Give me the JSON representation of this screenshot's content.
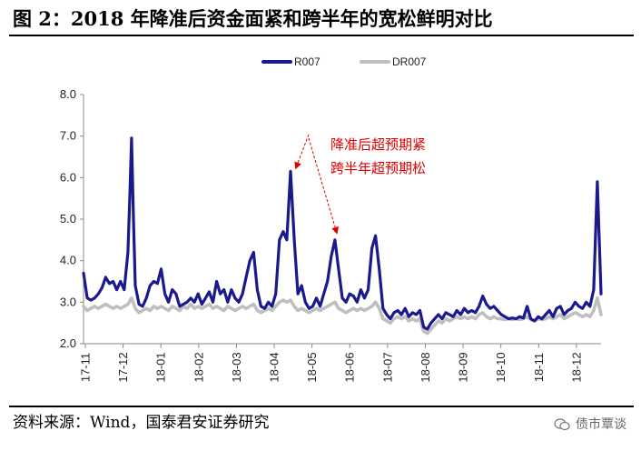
{
  "title": "图 2：2018 年降准后资金面紧和跨半年的宽松鲜明对比",
  "source": "资料来源：Wind，国泰君安证券研究",
  "watermark": "债市覃谈",
  "watermark_icon": "wechat-icon",
  "colors": {
    "R007": "#1a1a8c",
    "DR007": "#bfbfbf",
    "annotation": "#e00000"
  },
  "chart_data": {
    "type": "line",
    "title": "",
    "xlabel": "",
    "ylabel": "",
    "ylim": [
      2.0,
      8.0
    ],
    "yticks": [
      "8.0",
      "7.0",
      "6.0",
      "5.0",
      "4.0",
      "3.0",
      "2.0"
    ],
    "xticks": [
      "17-11",
      "17-12",
      "18-01",
      "18-02",
      "18-03",
      "18-04",
      "18-05",
      "18-06",
      "18-07",
      "18-08",
      "18-09",
      "18-10",
      "18-11",
      "18-12"
    ],
    "legend": "top-center",
    "grid": false,
    "annotations": [
      "降准后超预期紧",
      "跨半年超预期松"
    ],
    "series": [
      {
        "name": "R007",
        "points": [
          [
            0,
            3.7
          ],
          [
            1,
            3.1
          ],
          [
            2,
            3.05
          ],
          [
            3,
            3.1
          ],
          [
            4,
            3.2
          ],
          [
            5,
            3.35
          ],
          [
            6,
            3.6
          ],
          [
            7,
            3.45
          ],
          [
            8,
            3.5
          ],
          [
            9,
            3.3
          ],
          [
            10,
            3.5
          ],
          [
            11,
            3.3
          ],
          [
            12,
            4.2
          ],
          [
            12.5,
            5.5
          ],
          [
            13,
            6.95
          ],
          [
            13.5,
            5.0
          ],
          [
            14,
            3.4
          ],
          [
            15,
            2.95
          ],
          [
            16,
            2.9
          ],
          [
            17,
            3.1
          ],
          [
            18,
            3.4
          ],
          [
            19,
            3.5
          ],
          [
            20,
            3.45
          ],
          [
            21,
            3.8
          ],
          [
            22,
            3.2
          ],
          [
            23,
            3.0
          ],
          [
            24,
            3.3
          ],
          [
            25,
            3.2
          ],
          [
            26,
            2.9
          ],
          [
            27,
            2.95
          ],
          [
            28,
            3.0
          ],
          [
            29,
            3.1
          ],
          [
            30,
            3.0
          ],
          [
            31,
            3.2
          ],
          [
            32,
            2.95
          ],
          [
            33,
            3.1
          ],
          [
            34,
            3.25
          ],
          [
            35,
            3.0
          ],
          [
            36,
            3.5
          ],
          [
            37,
            3.2
          ],
          [
            38,
            3.3
          ],
          [
            39,
            3.0
          ],
          [
            40,
            3.3
          ],
          [
            41,
            3.1
          ],
          [
            42,
            3.0
          ],
          [
            43,
            3.2
          ],
          [
            44,
            3.6
          ],
          [
            45,
            4.0
          ],
          [
            46,
            4.2
          ],
          [
            47,
            3.3
          ],
          [
            48,
            2.9
          ],
          [
            49,
            2.85
          ],
          [
            50,
            3.0
          ],
          [
            51,
            2.9
          ],
          [
            52,
            3.2
          ],
          [
            53,
            4.5
          ],
          [
            54,
            4.7
          ],
          [
            55,
            4.5
          ],
          [
            56,
            6.15
          ],
          [
            57,
            4.5
          ],
          [
            58,
            3.2
          ],
          [
            59,
            3.4
          ],
          [
            60,
            3.0
          ],
          [
            61,
            2.85
          ],
          [
            62,
            2.9
          ],
          [
            63,
            3.1
          ],
          [
            64,
            2.9
          ],
          [
            65,
            3.2
          ],
          [
            66,
            3.5
          ],
          [
            67,
            4.1
          ],
          [
            68,
            4.5
          ],
          [
            69,
            3.8
          ],
          [
            70,
            3.1
          ],
          [
            71,
            3.0
          ],
          [
            72,
            3.2
          ],
          [
            73,
            3.15
          ],
          [
            74,
            3.0
          ],
          [
            75,
            3.3
          ],
          [
            76,
            3.1
          ],
          [
            77,
            3.3
          ],
          [
            78,
            4.3
          ],
          [
            79,
            4.6
          ],
          [
            80,
            3.8
          ],
          [
            81,
            2.85
          ],
          [
            82,
            2.7
          ],
          [
            83,
            2.6
          ],
          [
            84,
            2.75
          ],
          [
            85,
            2.8
          ],
          [
            86,
            2.7
          ],
          [
            87,
            2.85
          ],
          [
            88,
            2.65
          ],
          [
            89,
            2.75
          ],
          [
            90,
            2.7
          ],
          [
            91,
            2.8
          ],
          [
            92,
            2.4
          ],
          [
            93,
            2.35
          ],
          [
            94,
            2.5
          ],
          [
            95,
            2.6
          ],
          [
            96,
            2.7
          ],
          [
            97,
            2.6
          ],
          [
            98,
            2.75
          ],
          [
            99,
            2.7
          ],
          [
            100,
            2.65
          ],
          [
            101,
            2.8
          ],
          [
            102,
            2.7
          ],
          [
            103,
            2.85
          ],
          [
            104,
            2.75
          ],
          [
            105,
            2.8
          ],
          [
            106,
            2.75
          ],
          [
            107,
            2.9
          ],
          [
            108,
            3.15
          ],
          [
            109,
            2.95
          ],
          [
            110,
            2.85
          ],
          [
            111,
            2.9
          ],
          [
            112,
            2.8
          ],
          [
            113,
            2.7
          ],
          [
            114,
            2.65
          ],
          [
            115,
            2.6
          ],
          [
            116,
            2.62
          ],
          [
            117,
            2.6
          ],
          [
            118,
            2.65
          ],
          [
            119,
            2.62
          ],
          [
            120,
            2.9
          ],
          [
            121,
            2.6
          ],
          [
            122,
            2.55
          ],
          [
            123,
            2.65
          ],
          [
            124,
            2.6
          ],
          [
            125,
            2.7
          ],
          [
            126,
            2.8
          ],
          [
            127,
            2.65
          ],
          [
            128,
            2.85
          ],
          [
            129,
            2.9
          ],
          [
            130,
            2.7
          ],
          [
            131,
            2.8
          ],
          [
            132,
            2.85
          ],
          [
            133,
            3.0
          ],
          [
            134,
            2.9
          ],
          [
            135,
            2.85
          ],
          [
            136,
            3.0
          ],
          [
            137,
            2.9
          ],
          [
            138,
            3.3
          ],
          [
            139,
            5.9
          ],
          [
            140,
            3.2
          ]
        ]
      },
      {
        "name": "DR007",
        "points": [
          [
            0,
            2.9
          ],
          [
            1,
            2.8
          ],
          [
            2,
            2.85
          ],
          [
            3,
            2.9
          ],
          [
            4,
            2.85
          ],
          [
            5,
            2.9
          ],
          [
            6,
            2.95
          ],
          [
            7,
            2.9
          ],
          [
            8,
            2.85
          ],
          [
            9,
            2.9
          ],
          [
            10,
            2.85
          ],
          [
            11,
            2.9
          ],
          [
            12,
            2.95
          ],
          [
            13,
            3.1
          ],
          [
            14,
            2.85
          ],
          [
            15,
            2.75
          ],
          [
            16,
            2.8
          ],
          [
            17,
            2.85
          ],
          [
            18,
            2.8
          ],
          [
            19,
            2.9
          ],
          [
            20,
            2.85
          ],
          [
            21,
            2.9
          ],
          [
            22,
            2.85
          ],
          [
            23,
            2.8
          ],
          [
            24,
            2.9
          ],
          [
            25,
            2.85
          ],
          [
            26,
            2.8
          ],
          [
            27,
            2.9
          ],
          [
            28,
            2.85
          ],
          [
            29,
            2.95
          ],
          [
            30,
            2.85
          ],
          [
            31,
            2.9
          ],
          [
            32,
            2.85
          ],
          [
            33,
            2.9
          ],
          [
            34,
            2.95
          ],
          [
            35,
            2.85
          ],
          [
            36,
            2.9
          ],
          [
            37,
            2.85
          ],
          [
            38,
            2.8
          ],
          [
            39,
            2.9
          ],
          [
            40,
            2.85
          ],
          [
            41,
            2.8
          ],
          [
            42,
            2.85
          ],
          [
            43,
            2.9
          ],
          [
            44,
            2.85
          ],
          [
            45,
            2.9
          ],
          [
            46,
            2.95
          ],
          [
            47,
            2.8
          ],
          [
            48,
            2.75
          ],
          [
            49,
            2.8
          ],
          [
            50,
            2.85
          ],
          [
            51,
            2.8
          ],
          [
            52,
            2.9
          ],
          [
            53,
            3.0
          ],
          [
            54,
            3.05
          ],
          [
            55,
            3.0
          ],
          [
            56,
            3.05
          ],
          [
            57,
            2.9
          ],
          [
            58,
            2.8
          ],
          [
            59,
            2.85
          ],
          [
            60,
            2.8
          ],
          [
            61,
            2.75
          ],
          [
            62,
            2.8
          ],
          [
            63,
            2.85
          ],
          [
            64,
            2.8
          ],
          [
            65,
            2.85
          ],
          [
            66,
            2.9
          ],
          [
            67,
            2.95
          ],
          [
            68,
            3.0
          ],
          [
            69,
            2.85
          ],
          [
            70,
            2.8
          ],
          [
            71,
            2.75
          ],
          [
            72,
            2.8
          ],
          [
            73,
            2.85
          ],
          [
            74,
            2.8
          ],
          [
            75,
            2.85
          ],
          [
            76,
            2.8
          ],
          [
            77,
            2.85
          ],
          [
            78,
            2.9
          ],
          [
            79,
            3.0
          ],
          [
            80,
            2.85
          ],
          [
            81,
            2.6
          ],
          [
            82,
            2.55
          ],
          [
            83,
            2.5
          ],
          [
            84,
            2.6
          ],
          [
            85,
            2.65
          ],
          [
            86,
            2.6
          ],
          [
            87,
            2.65
          ],
          [
            88,
            2.55
          ],
          [
            89,
            2.6
          ],
          [
            90,
            2.55
          ],
          [
            91,
            2.6
          ],
          [
            92,
            2.3
          ],
          [
            93,
            2.25
          ],
          [
            94,
            2.35
          ],
          [
            95,
            2.45
          ],
          [
            96,
            2.55
          ],
          [
            97,
            2.5
          ],
          [
            98,
            2.6
          ],
          [
            99,
            2.55
          ],
          [
            100,
            2.6
          ],
          [
            101,
            2.65
          ],
          [
            102,
            2.6
          ],
          [
            103,
            2.65
          ],
          [
            104,
            2.6
          ],
          [
            105,
            2.65
          ],
          [
            106,
            2.6
          ],
          [
            107,
            2.7
          ],
          [
            108,
            2.75
          ],
          [
            109,
            2.65
          ],
          [
            110,
            2.6
          ],
          [
            111,
            2.65
          ],
          [
            112,
            2.6
          ],
          [
            113,
            2.6
          ],
          [
            114,
            2.58
          ],
          [
            115,
            2.6
          ],
          [
            116,
            2.58
          ],
          [
            117,
            2.6
          ],
          [
            118,
            2.58
          ],
          [
            119,
            2.6
          ],
          [
            120,
            2.65
          ],
          [
            121,
            2.58
          ],
          [
            122,
            2.55
          ],
          [
            123,
            2.6
          ],
          [
            124,
            2.58
          ],
          [
            125,
            2.6
          ],
          [
            126,
            2.65
          ],
          [
            127,
            2.6
          ],
          [
            128,
            2.65
          ],
          [
            129,
            2.7
          ],
          [
            130,
            2.6
          ],
          [
            131,
            2.65
          ],
          [
            132,
            2.7
          ],
          [
            133,
            2.75
          ],
          [
            134,
            2.7
          ],
          [
            135,
            2.65
          ],
          [
            136,
            2.7
          ],
          [
            137,
            2.65
          ],
          [
            138,
            2.8
          ],
          [
            139,
            3.1
          ],
          [
            140,
            2.7
          ]
        ]
      }
    ]
  }
}
